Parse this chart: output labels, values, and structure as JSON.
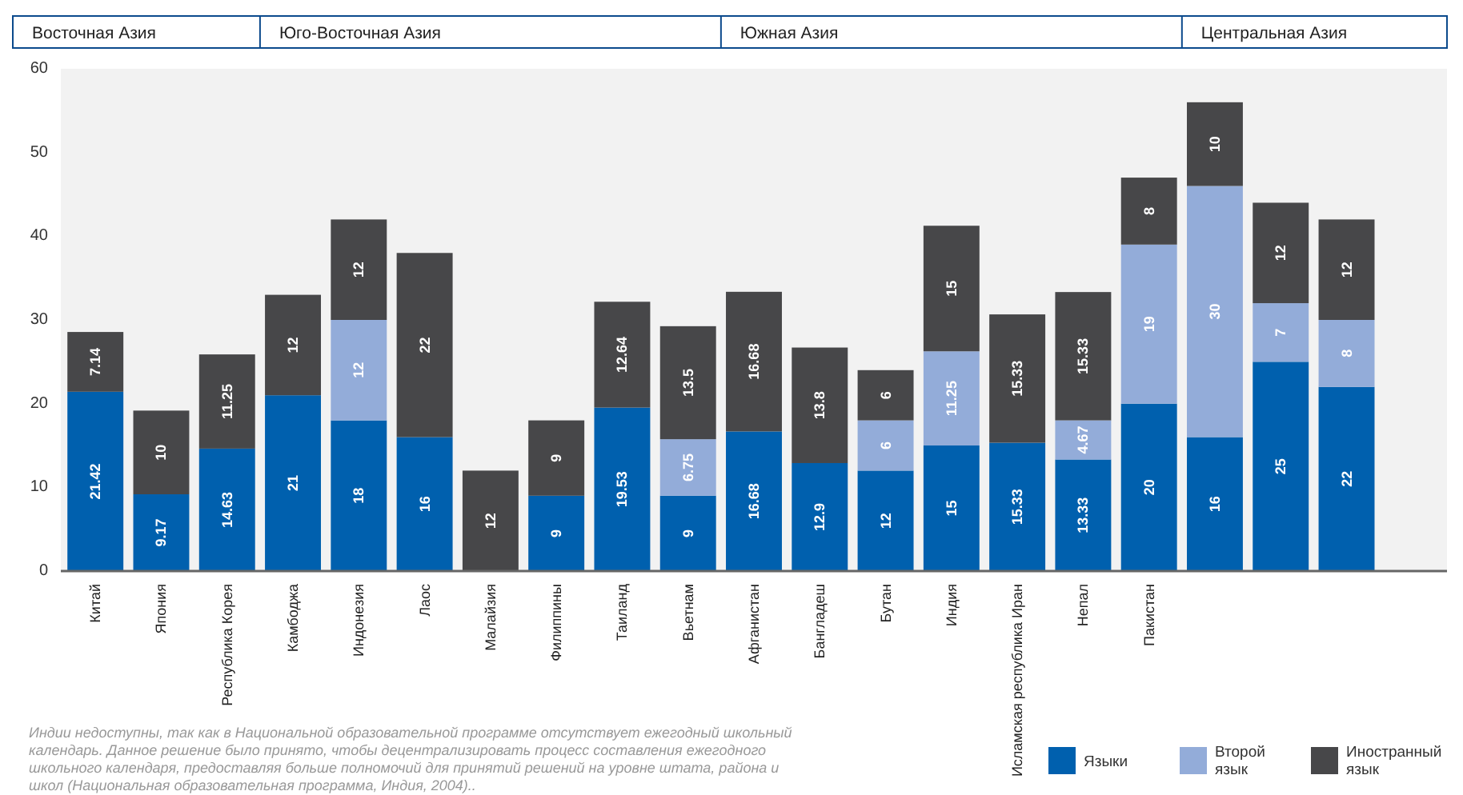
{
  "chart_data": {
    "type": "bar",
    "stacked": true,
    "categories": [
      "Китай",
      "Япония",
      "Республика Корея",
      "Камбоджа",
      "Индонезия",
      "Лаос",
      "Малайзия",
      "Филиппины",
      "Таиланд",
      "Вьетнам",
      "Афганистан",
      "Бангладеш",
      "Бутан",
      "Индия",
      "Исламская республика Иран",
      "Непал",
      "Пакистан",
      null,
      null,
      null,
      null
    ],
    "series": [
      {
        "name": "Языки",
        "color": "#0060ae",
        "values": [
          21.42,
          9.17,
          14.63,
          21,
          18,
          16,
          null,
          9,
          19.53,
          9,
          16.68,
          12.9,
          12,
          15,
          15.33,
          13.33,
          20,
          16,
          25,
          22,
          null
        ],
        "value_labels": [
          "21.42",
          "9.17",
          "14.63",
          "21",
          "18",
          "16",
          null,
          "9",
          "19.53",
          "9",
          "16.68",
          "12.9",
          "12",
          "15",
          "15.33",
          "13.33",
          "20",
          "16",
          "25",
          "22",
          null
        ]
      },
      {
        "name": "Второй язык",
        "color": "#93acd9",
        "values": [
          null,
          null,
          null,
          null,
          12,
          null,
          null,
          null,
          null,
          6.75,
          null,
          null,
          6,
          11.25,
          null,
          4.67,
          19,
          30,
          7,
          8,
          null
        ],
        "value_labels": [
          null,
          null,
          null,
          null,
          "12",
          null,
          null,
          null,
          null,
          "6.75",
          null,
          null,
          "6",
          "11.25",
          null,
          "4.67",
          "19",
          "30",
          "7",
          "8",
          null
        ]
      },
      {
        "name": "Иностранный язык",
        "color": "#474749",
        "values": [
          7.14,
          10,
          11.25,
          12,
          12,
          22,
          12,
          9,
          12.64,
          13.5,
          16.68,
          13.8,
          6,
          15,
          15.33,
          15.33,
          8,
          10,
          12,
          12,
          null
        ],
        "value_labels": [
          "7.14",
          "10",
          "11.25",
          "12",
          "12",
          "22",
          "12",
          "9",
          "12.64",
          "13.5",
          "16.68",
          "13.8",
          "6",
          "15",
          "15.33",
          "15.33",
          "8",
          "10",
          "12",
          "12",
          null
        ]
      }
    ],
    "ylim": [
      0,
      60
    ],
    "yticks": [
      0,
      10,
      20,
      30,
      40,
      50,
      60
    ],
    "legend": "bottom right",
    "annotations": [
      "Восточная Азия",
      "Юго-Восточная Азия",
      "Южная Азия",
      "Центральная Азия",
      "Индии недоступны, так как в Национальной образовательной программе отсутствует ежегодный школьный календарь. Данное решение было принято, чтобы децентрализировать процесс составления ежегодного школьного календаря, предоставляя больше полномочий для принятий решений на уровне штата, района и школ (Национальная образовательная программа, Индия, 2004).."
    ]
  }
}
